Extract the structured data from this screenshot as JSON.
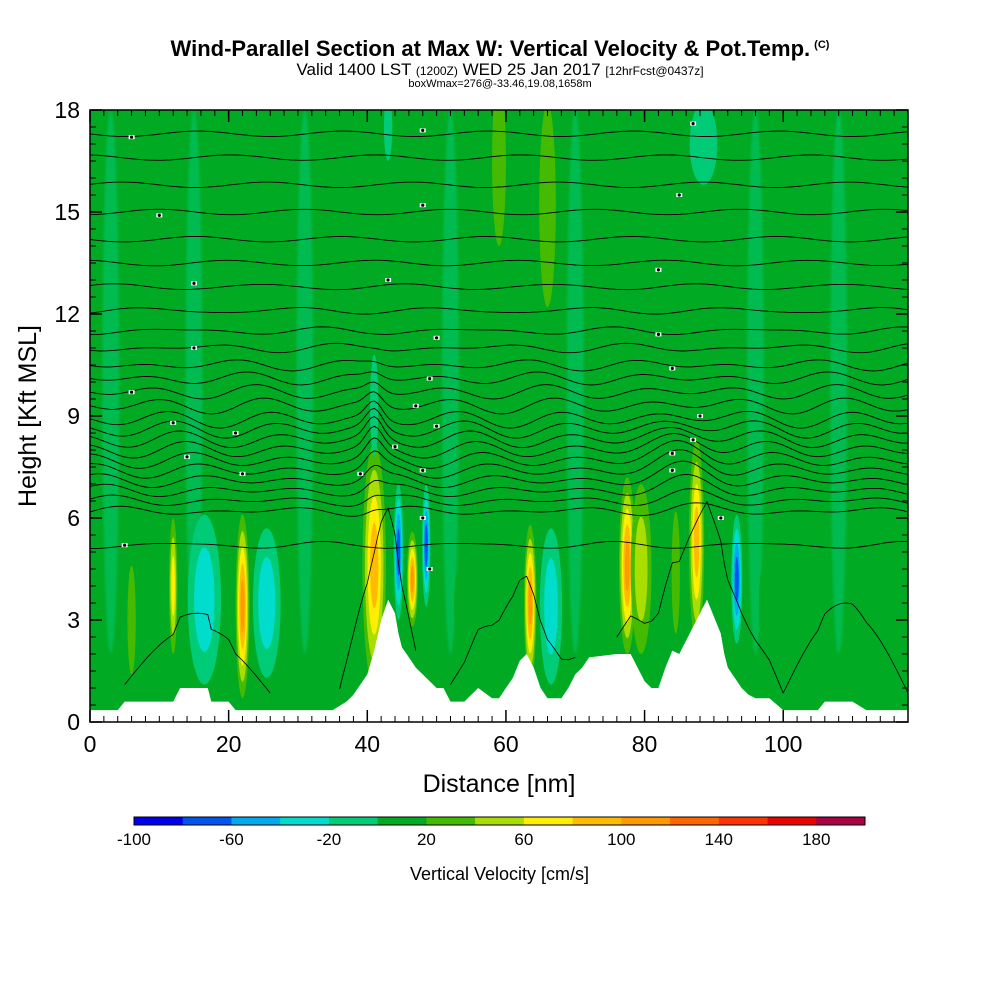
{
  "chart_data": {
    "type": "heatmap",
    "title": "Wind-Parallel Section at Max W: Vertical Velocity & Pot.Temp.",
    "title_mark": "(C)",
    "subtitle_parts": [
      "Valid 1400 LST",
      "(1200Z)",
      "WED 25 Jan 2017",
      "[12hrFcst@0437z]"
    ],
    "subtitle2": "boxWmax=276@-33.46,19.08,1658m",
    "xlabel": "Distance [nm]",
    "ylabel": "Height [Kft MSL]",
    "xlim": [
      0,
      118
    ],
    "ylim": [
      0,
      18
    ],
    "x_ticks": [
      "0",
      "20",
      "40",
      "60",
      "80",
      "100"
    ],
    "y_ticks": [
      "0",
      "3",
      "6",
      "9",
      "12",
      "15",
      "18"
    ],
    "colorbar": {
      "title": "Vertical Velocity [cm/s]",
      "min": -100,
      "max": 200,
      "step": 20,
      "tick_labels": [
        "-100",
        "-60",
        "-20",
        "20",
        "60",
        "100",
        "140",
        "180"
      ],
      "colors": [
        "#0000ee",
        "#0055ee",
        "#00aaee",
        "#00ddcc",
        "#00cc77",
        "#00aa22",
        "#44bb00",
        "#aadd00",
        "#ffee00",
        "#ffbb00",
        "#ff9900",
        "#ff6600",
        "#ff3300",
        "#ee0000",
        "#aa0044"
      ]
    },
    "terrain": [
      [
        0,
        0.35
      ],
      [
        4,
        0.35
      ],
      [
        5,
        0.6
      ],
      [
        8,
        0.6
      ],
      [
        12,
        0.6
      ],
      [
        13,
        1
      ],
      [
        17,
        1
      ],
      [
        17.5,
        0.6
      ],
      [
        20,
        0.6
      ],
      [
        21,
        0.35
      ],
      [
        24,
        0.35
      ],
      [
        35,
        0.35
      ],
      [
        37,
        0.6
      ],
      [
        38,
        0.8
      ],
      [
        40,
        1.4
      ],
      [
        41,
        2.1
      ],
      [
        42,
        3
      ],
      [
        43,
        3.6
      ],
      [
        44,
        3.2
      ],
      [
        44.5,
        2.6
      ],
      [
        45,
        2.2
      ],
      [
        46,
        1.9
      ],
      [
        47,
        1.6
      ],
      [
        48,
        1.4
      ],
      [
        49,
        1.2
      ],
      [
        50,
        1
      ],
      [
        51,
        1
      ],
      [
        52,
        0.6
      ],
      [
        54,
        0.6
      ],
      [
        56,
        1
      ],
      [
        58,
        0.7
      ],
      [
        59,
        0.7
      ],
      [
        60,
        1
      ],
      [
        61,
        1.3
      ],
      [
        62,
        1.8
      ],
      [
        63,
        2
      ],
      [
        64,
        1.6
      ],
      [
        65,
        1
      ],
      [
        66,
        0.7
      ],
      [
        68,
        0.7
      ],
      [
        69,
        1
      ],
      [
        70,
        1.4
      ],
      [
        71,
        1.6
      ],
      [
        72,
        1.9
      ],
      [
        76,
        2
      ],
      [
        78,
        2
      ],
      [
        79,
        1.6
      ],
      [
        80,
        1.2
      ],
      [
        81,
        1
      ],
      [
        82,
        1
      ],
      [
        83,
        1.6
      ],
      [
        84,
        2.1
      ],
      [
        85,
        2
      ],
      [
        86,
        2.4
      ],
      [
        87,
        2.8
      ],
      [
        88,
        3.2
      ],
      [
        89,
        3.6
      ],
      [
        90,
        3.1
      ],
      [
        91,
        2.6
      ],
      [
        91.5,
        2
      ],
      [
        92,
        1.6
      ],
      [
        93,
        1.3
      ],
      [
        94,
        1
      ],
      [
        95,
        0.8
      ],
      [
        96,
        0.7
      ],
      [
        98,
        0.7
      ],
      [
        100,
        0.35
      ],
      [
        105,
        0.35
      ],
      [
        106,
        0.6
      ],
      [
        110,
        0.6
      ],
      [
        112,
        0.35
      ],
      [
        118,
        0.35
      ]
    ],
    "features": [
      {
        "x": 41,
        "z": 5.5,
        "w": 1.1,
        "h": 2.6,
        "value": 170
      },
      {
        "x": 41,
        "z": 4.6,
        "w": 1.7,
        "h": 3.6,
        "value": 90
      },
      {
        "x": 44.5,
        "z": 5,
        "w": 0.7,
        "h": 2.0,
        "value": -80
      },
      {
        "x": 46.5,
        "z": 4.2,
        "w": 0.8,
        "h": 1.4,
        "value": 120
      },
      {
        "x": 48.5,
        "z": 5.2,
        "w": 0.6,
        "h": 1.8,
        "value": -85
      },
      {
        "x": 22,
        "z": 3.4,
        "w": 1.0,
        "h": 2.7,
        "value": 120
      },
      {
        "x": 12,
        "z": 4.0,
        "w": 0.6,
        "h": 2.0,
        "value": 70
      },
      {
        "x": 6,
        "z": 3.0,
        "w": 0.6,
        "h": 1.6,
        "value": 40
      },
      {
        "x": 16.5,
        "z": 3.6,
        "w": 2.4,
        "h": 2.5,
        "value": -35
      },
      {
        "x": 25.5,
        "z": 3.5,
        "w": 2.0,
        "h": 2.2,
        "value": -30
      },
      {
        "x": 63.5,
        "z": 3.5,
        "w": 0.9,
        "h": 2.3,
        "value": 120
      },
      {
        "x": 66.5,
        "z": 3.4,
        "w": 1.6,
        "h": 2.3,
        "value": -30
      },
      {
        "x": 77.5,
        "z": 4.6,
        "w": 1.2,
        "h": 2.6,
        "value": 110
      },
      {
        "x": 79.5,
        "z": 4.5,
        "w": 1.5,
        "h": 2.5,
        "value": 55
      },
      {
        "x": 87.5,
        "z": 5.3,
        "w": 1.1,
        "h": 3.0,
        "value": 90
      },
      {
        "x": 84.5,
        "z": 4.4,
        "w": 0.6,
        "h": 1.8,
        "value": 40
      },
      {
        "x": 93.3,
        "z": 4.2,
        "w": 0.8,
        "h": 1.9,
        "value": -75
      },
      {
        "x": 56,
        "z": 3.5,
        "w": 3.5,
        "h": 2.0,
        "value": 12
      },
      {
        "x": 100,
        "z": 3.5,
        "w": 3.5,
        "h": 2.3,
        "value": 12
      },
      {
        "x": 112,
        "z": 3.0,
        "w": 2.5,
        "h": 2.0,
        "value": 12
      },
      {
        "x": 41,
        "z": 9.3,
        "w": 0.6,
        "h": 1.5,
        "value": -25
      },
      {
        "x": 66,
        "z": 15.2,
        "w": 1.2,
        "h": 3.0,
        "value": 30
      },
      {
        "x": 59,
        "z": 16.5,
        "w": 1.0,
        "h": 2.5,
        "value": 30
      },
      {
        "x": 88.5,
        "z": 17.0,
        "w": 2.0,
        "h": 1.2,
        "value": -25
      },
      {
        "x": 43,
        "z": 17.5,
        "w": 0.6,
        "h": 1.0,
        "value": -25
      },
      {
        "x": 8,
        "z": 10.8,
        "w": 1.2,
        "h": 2.5,
        "value": 10
      },
      {
        "x": 73,
        "z": 9.5,
        "w": 1.2,
        "h": 3.0,
        "value": 12
      },
      {
        "x": 55,
        "z": 9.8,
        "w": 1.0,
        "h": 2.5,
        "value": 12
      }
    ],
    "isentropes": {
      "levels": [
        5.2,
        6.2,
        6.5,
        6.8,
        7.1,
        7.4,
        7.7,
        8.0,
        8.3,
        8.6,
        8.9,
        9.3,
        9.7,
        10.1,
        10.5,
        11.0,
        11.5,
        12.1,
        12.8,
        13.5,
        14.2,
        15.0,
        15.8,
        16.6,
        17.3
      ],
      "labels": [
        {
          "x": 5,
          "z": 5.2
        },
        {
          "x": 49,
          "z": 4.5
        },
        {
          "x": 48,
          "z": 6.0
        },
        {
          "x": 91,
          "z": 6.0
        },
        {
          "x": 39,
          "z": 7.3
        },
        {
          "x": 22,
          "z": 7.3
        },
        {
          "x": 48,
          "z": 7.4
        },
        {
          "x": 84,
          "z": 7.4
        },
        {
          "x": 14,
          "z": 7.8
        },
        {
          "x": 84,
          "z": 7.9
        },
        {
          "x": 44,
          "z": 8.1
        },
        {
          "x": 87,
          "z": 8.3
        },
        {
          "x": 21,
          "z": 8.5
        },
        {
          "x": 12,
          "z": 8.8
        },
        {
          "x": 50,
          "z": 8.7
        },
        {
          "x": 88,
          "z": 9.0
        },
        {
          "x": 47,
          "z": 9.3
        },
        {
          "x": 6,
          "z": 9.7
        },
        {
          "x": 49,
          "z": 10.1
        },
        {
          "x": 84,
          "z": 10.4
        },
        {
          "x": 15,
          "z": 11.0
        },
        {
          "x": 50,
          "z": 11.3
        },
        {
          "x": 82,
          "z": 11.4
        },
        {
          "x": 15,
          "z": 12.9
        },
        {
          "x": 43,
          "z": 13.0
        },
        {
          "x": 82,
          "z": 13.3
        },
        {
          "x": 10,
          "z": 14.9
        },
        {
          "x": 48,
          "z": 15.2
        },
        {
          "x": 85,
          "z": 15.5
        },
        {
          "x": 6,
          "z": 17.2
        },
        {
          "x": 48,
          "z": 17.4
        },
        {
          "x": 87,
          "z": 17.6
        }
      ]
    }
  }
}
